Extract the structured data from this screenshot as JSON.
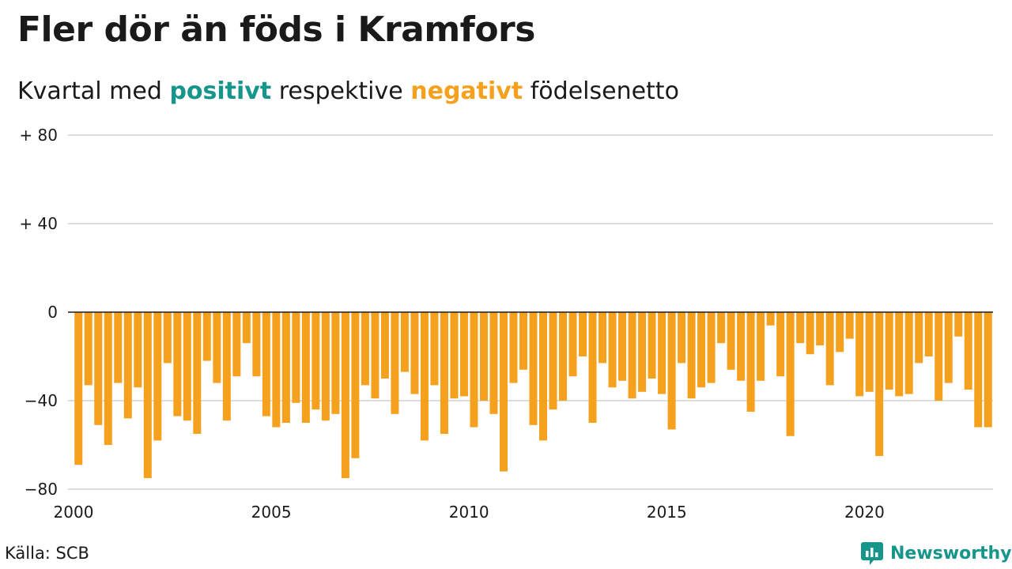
{
  "title": "Fler dör än föds i Kramfors",
  "subtitle": {
    "prefix": "Kvartal med",
    "positive": "positivt",
    "middle": "respektive",
    "negative": "negativt",
    "suffix": "födelsenetto"
  },
  "source": "Källa: SCB",
  "brand": {
    "name": "Newsworthy",
    "icon": "newsworthy-logo-icon"
  },
  "colors": {
    "positive": "#16968a",
    "negative": "#f6a11e",
    "grid": "#dddddd",
    "zero": "#1a1a1a"
  },
  "chart_data": {
    "type": "bar",
    "title": "Fler dör än föds i Kramfors",
    "subtitle": "Kvartal med positivt respektive negativt födelsenetto",
    "xlabel": "",
    "ylabel": "",
    "ylim": [
      -80,
      80
    ],
    "grid": true,
    "y_ticks": [
      {
        "value": 80,
        "label": "+ 80"
      },
      {
        "value": 40,
        "label": "+ 40"
      },
      {
        "value": 0,
        "label": "0"
      },
      {
        "value": -40,
        "label": "−40"
      },
      {
        "value": -80,
        "label": "−80"
      }
    ],
    "x_ticks": [
      {
        "value": 2000,
        "label": "2000"
      },
      {
        "value": 2005,
        "label": "2005"
      },
      {
        "value": 2010,
        "label": "2010"
      },
      {
        "value": 2015,
        "label": "2015"
      },
      {
        "value": 2020,
        "label": "2020"
      }
    ],
    "x_start": 2000,
    "x_end": 2023.25,
    "period": "quarter",
    "values": [
      -69,
      -33,
      -51,
      -60,
      -32,
      -48,
      -34,
      -75,
      -58,
      -23,
      -47,
      -49,
      -55,
      -22,
      -32,
      -49,
      -29,
      -14,
      -29,
      -47,
      -52,
      -50,
      -41,
      -50,
      -44,
      -49,
      -46,
      -75,
      -66,
      -33,
      -39,
      -30,
      -46,
      -27,
      -37,
      -58,
      -33,
      -55,
      -39,
      -38,
      -52,
      -40,
      -46,
      -72,
      -32,
      -26,
      -51,
      -58,
      -44,
      -40,
      -29,
      -20,
      -50,
      -23,
      -34,
      -31,
      -39,
      -36,
      -30,
      -37,
      -53,
      -23,
      -39,
      -34,
      -32,
      -14,
      -26,
      -31,
      -45,
      -31,
      -6,
      -29,
      -56,
      -14,
      -19,
      -15,
      -33,
      -18,
      -12,
      -38,
      -36,
      -65,
      -35,
      -38,
      -37,
      -23,
      -20,
      -40,
      -32,
      -11,
      -35,
      -52,
      -52
    ]
  }
}
